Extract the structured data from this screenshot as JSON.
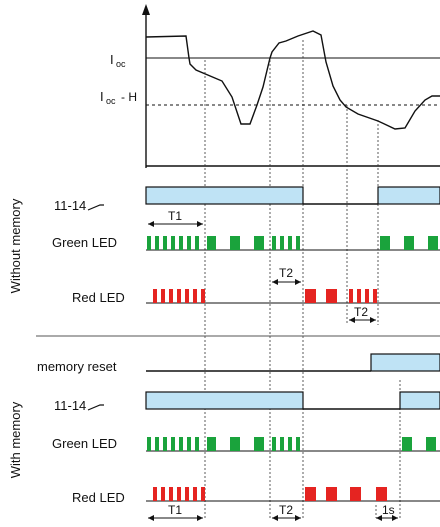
{
  "signal": {
    "i_oc": "I",
    "i_oc_sub": "oc",
    "i_oc_h": "I",
    "i_oc_h_sub": "oc",
    "i_oc_h_suffix": "- H"
  },
  "groups": {
    "without_memory": "Without memory",
    "with_memory": "With memory"
  },
  "rows": {
    "relay_11_14": "11-14",
    "green_led": "Green LED",
    "red_led": "Red LED",
    "memory_reset": "memory reset"
  },
  "timings": {
    "t1": "T1",
    "t2": "T2",
    "one_s": "1s"
  },
  "colors": {
    "relay_fill": "#bfe3f5",
    "green": "#1aa33c",
    "red": "#e52421",
    "line": "#111111"
  }
}
